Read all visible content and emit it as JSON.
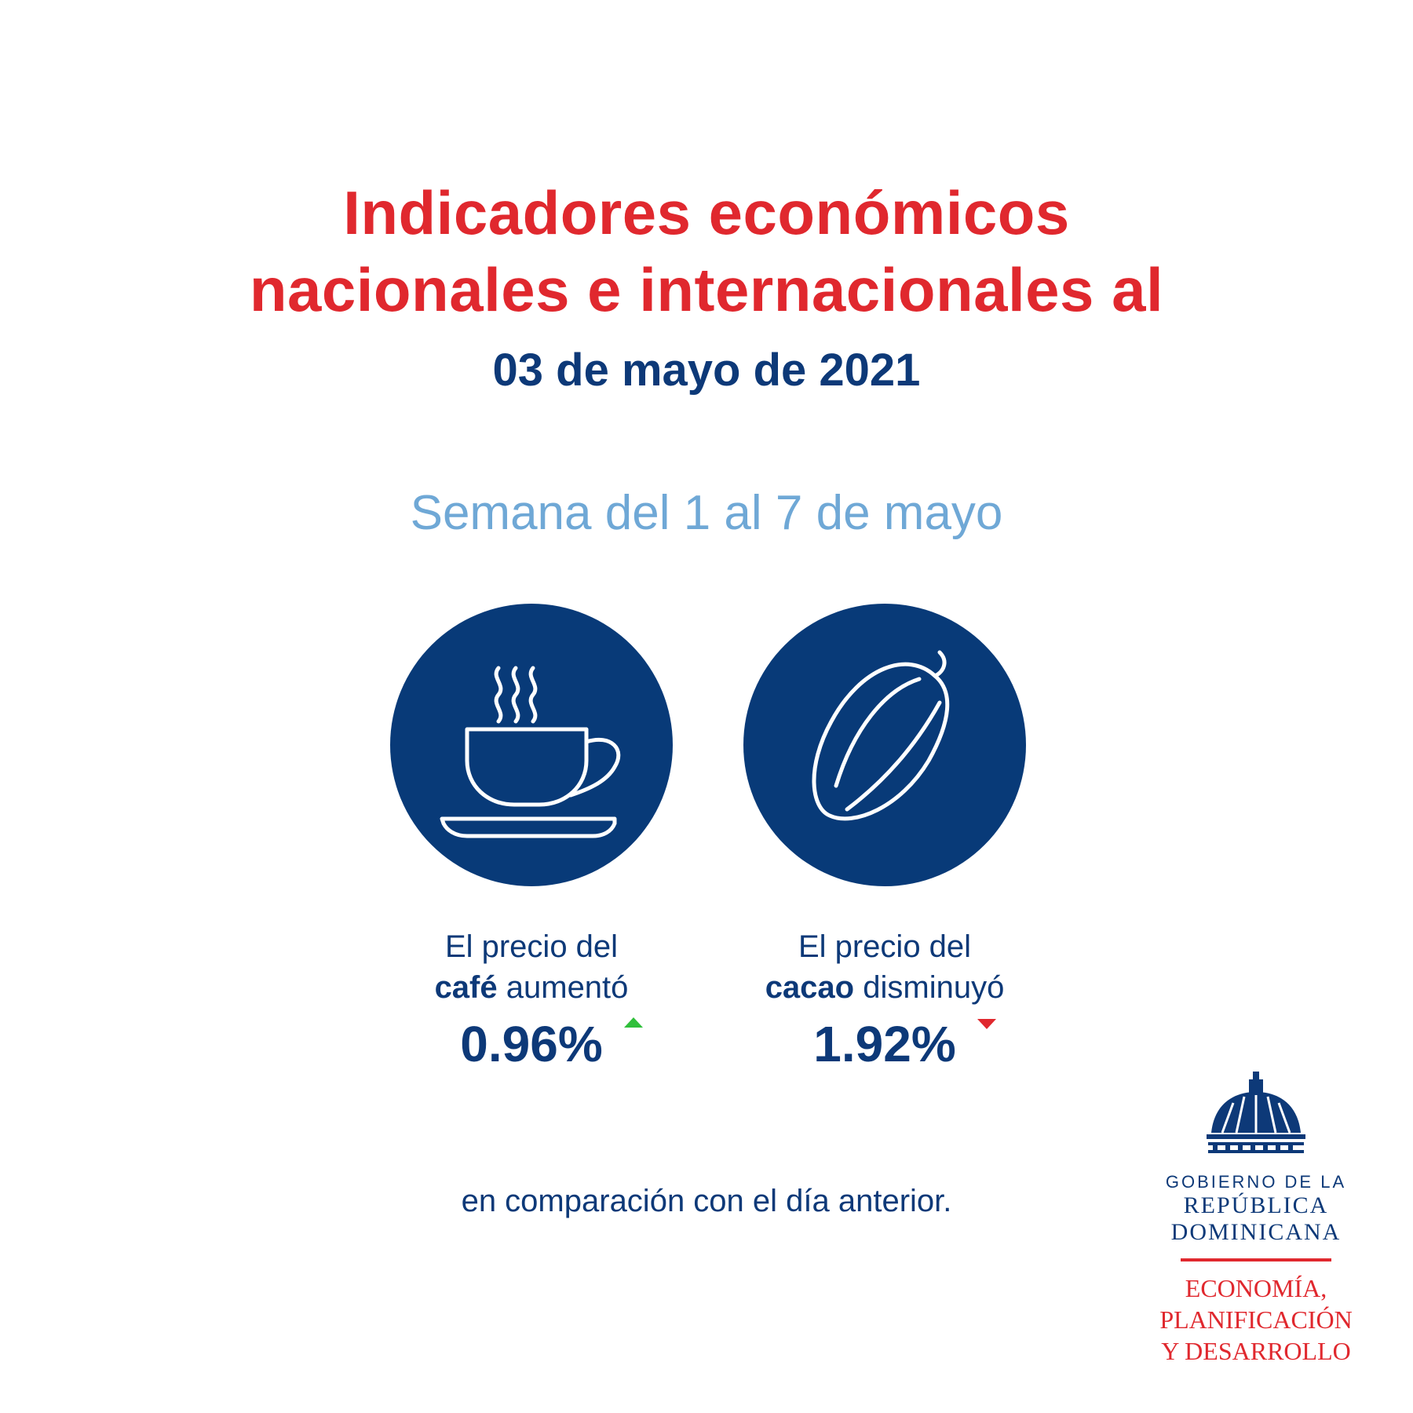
{
  "header": {
    "title_line1": "Indicadores económicos",
    "title_line2": "nacionales e internacionales al",
    "date": "03 de mayo de 2021",
    "week": "Semana del 1 al 7 de mayo"
  },
  "indicators": [
    {
      "icon": "coffee-cup-icon",
      "line1": "El precio del",
      "product": "café",
      "verb": "aumentó",
      "percent": "0.96%",
      "direction": "up",
      "arrow_color": "#2fbf3a"
    },
    {
      "icon": "cacao-pod-icon",
      "line1": "El precio del",
      "product": "cacao",
      "verb": "disminuyó",
      "percent": "1.92%",
      "direction": "down",
      "arrow_color": "#e0282e"
    }
  ],
  "footer": {
    "comparison": "en comparación con el día anterior."
  },
  "logo": {
    "line1": "GOBIERNO DE LA",
    "line2": "REPÚBLICA",
    "line3": "DOMINICANA",
    "ministry1": "ECONOMÍA,",
    "ministry2": "PLANIFICACIÓN",
    "ministry3": "Y DESARROLLO"
  },
  "colors": {
    "title_red": "#e0282e",
    "navy": "#0d3978",
    "circle": "#083a78",
    "week_blue": "#6fa8d6"
  }
}
